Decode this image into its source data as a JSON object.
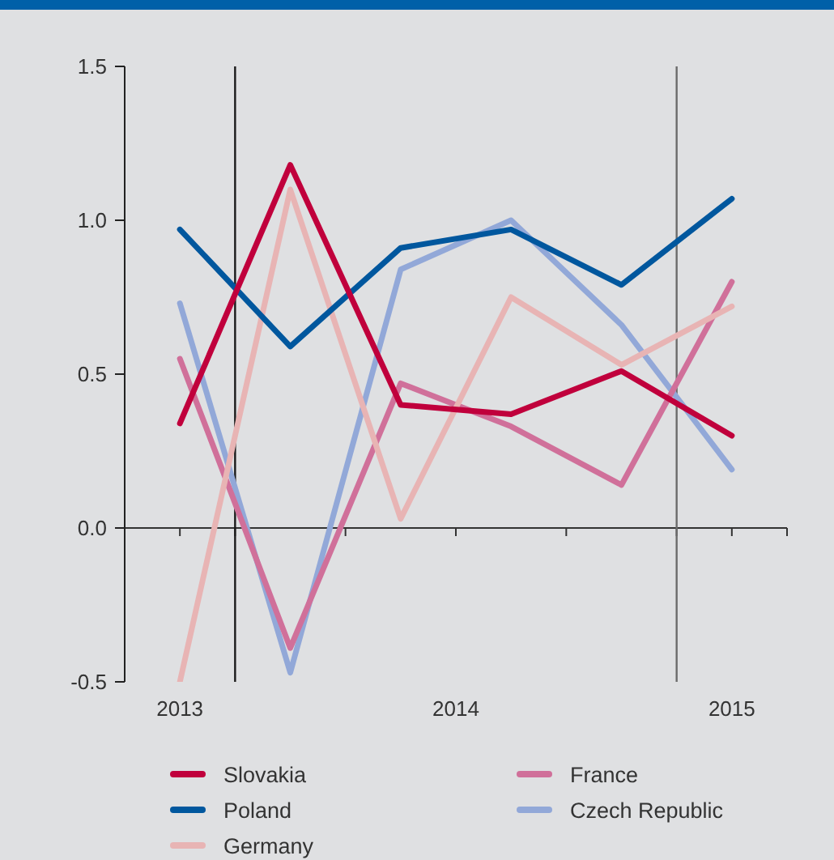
{
  "chart_data": {
    "type": "line",
    "x": [
      2013,
      2013.4,
      2013.8,
      2014.2,
      2014.6,
      2015
    ],
    "xlim": [
      2012.8,
      2015.2
    ],
    "xticks": [
      2013,
      {
        "value": 2013.2,
        "label": null
      },
      {
        "value": 2013.6,
        "label": null
      },
      2014,
      {
        "value": 2014.4,
        "label": null
      },
      {
        "value": 2014.8,
        "label": null
      },
      2015,
      {
        "value": 2015.2,
        "label": null
      }
    ],
    "ylim": [
      -0.5,
      1.5
    ],
    "yticks": [
      -0.5,
      {
        "value": 0,
        "label": "0.0"
      },
      0.5,
      {
        "value": 1,
        "label": "1.0"
      },
      1.5
    ],
    "series": [
      {
        "name": "Slovakia",
        "color": "#c0003c",
        "values": [
          0.34,
          1.18,
          0.4,
          0.37,
          0.51,
          0.3
        ]
      },
      {
        "name": "Poland",
        "color": "#00579e",
        "values": [
          0.97,
          0.59,
          0.91,
          0.97,
          0.79,
          1.07
        ]
      },
      {
        "name": "Germany",
        "color": "#e8b4b4",
        "values": [
          -0.5,
          1.1,
          0.03,
          0.75,
          0.53,
          0.72
        ]
      },
      {
        "name": "France",
        "color": "#d0709a",
        "values": [
          0.55,
          -0.39,
          0.47,
          0.33,
          0.14,
          0.8
        ]
      },
      {
        "name": "Czech Republic",
        "color": "#92a8d8",
        "values": [
          0.73,
          -0.47,
          0.84,
          1.0,
          0.66,
          0.19
        ]
      }
    ],
    "ref_lines": [
      {
        "axis": "x",
        "value": 2013.2,
        "color": "#1a1a1a"
      },
      {
        "axis": "x",
        "value": 2014.8,
        "color": "#6b6b6b"
      }
    ],
    "legend": "bottom"
  }
}
